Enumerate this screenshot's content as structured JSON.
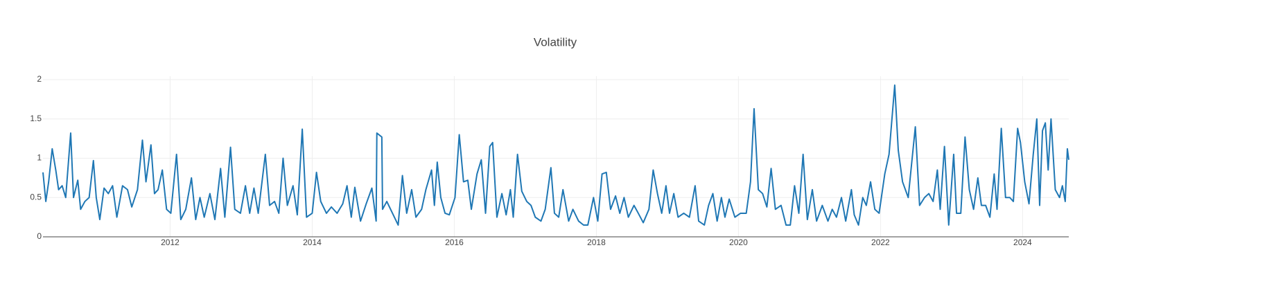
{
  "chart_data": {
    "type": "line",
    "title": "Volatility",
    "x": [
      2010.21,
      2010.25,
      2010.29,
      2010.34,
      2010.39,
      2010.43,
      2010.48,
      2010.53,
      2010.6,
      2010.64,
      2010.7,
      2010.74,
      2010.8,
      2010.86,
      2010.92,
      2010.96,
      2011.01,
      2011.07,
      2011.13,
      2011.19,
      2011.25,
      2011.33,
      2011.4,
      2011.46,
      2011.54,
      2011.61,
      2011.66,
      2011.73,
      2011.78,
      2011.83,
      2011.89,
      2011.95,
      2012.01,
      2012.09,
      2012.15,
      2012.22,
      2012.3,
      2012.36,
      2012.42,
      2012.48,
      2012.56,
      2012.63,
      2012.71,
      2012.77,
      2012.85,
      2012.91,
      2012.99,
      2013.06,
      2013.12,
      2013.18,
      2013.24,
      2013.34,
      2013.4,
      2013.47,
      2013.53,
      2013.59,
      2013.65,
      2013.73,
      2013.79,
      2013.86,
      2013.92,
      2014.0,
      2014.06,
      2014.12,
      2014.2,
      2014.27,
      2014.35,
      2014.43,
      2014.49,
      2014.55,
      2014.6,
      2014.68,
      2014.76,
      2014.84,
      2014.9,
      2014.91,
      2014.98,
      2014.99,
      2015.05,
      2015.13,
      2015.21,
      2015.27,
      2015.33,
      2015.4,
      2015.46,
      2015.54,
      2015.6,
      2015.68,
      2015.72,
      2015.76,
      2015.81,
      2015.87,
      2015.93,
      2016.01,
      2016.07,
      2016.13,
      2016.19,
      2016.24,
      2016.32,
      2016.38,
      2016.44,
      2016.5,
      2016.54,
      2016.6,
      2016.67,
      2016.73,
      2016.79,
      2016.83,
      2016.89,
      2016.95,
      2017.02,
      2017.08,
      2017.14,
      2017.22,
      2017.28,
      2017.36,
      2017.41,
      2017.47,
      2017.53,
      2017.61,
      2017.67,
      2017.75,
      2017.82,
      2017.88,
      2017.96,
      2018.02,
      2018.08,
      2018.14,
      2018.2,
      2018.27,
      2018.33,
      2018.39,
      2018.45,
      2018.53,
      2018.59,
      2018.66,
      2018.74,
      2018.8,
      2018.86,
      2018.92,
      2018.98,
      2019.03,
      2019.09,
      2019.15,
      2019.23,
      2019.31,
      2019.39,
      2019.44,
      2019.52,
      2019.58,
      2019.64,
      2019.7,
      2019.76,
      2019.81,
      2019.87,
      2019.95,
      2020.03,
      2020.11,
      2020.17,
      2020.22,
      2020.28,
      2020.34,
      2020.4,
      2020.46,
      2020.52,
      2020.6,
      2020.67,
      2020.73,
      2020.79,
      2020.85,
      2020.91,
      2020.97,
      2021.04,
      2021.1,
      2021.18,
      2021.26,
      2021.32,
      2021.38,
      2021.45,
      2021.51,
      2021.59,
      2021.63,
      2021.69,
      2021.75,
      2021.8,
      2021.86,
      2021.92,
      2021.98,
      2022.06,
      2022.12,
      2022.2,
      2022.25,
      2022.31,
      2022.39,
      2022.49,
      2022.55,
      2022.62,
      2022.68,
      2022.74,
      2022.8,
      2022.84,
      2022.9,
      2022.96,
      2023.03,
      2023.07,
      2023.13,
      2023.19,
      2023.25,
      2023.31,
      2023.37,
      2023.42,
      2023.48,
      2023.54,
      2023.6,
      2023.64,
      2023.7,
      2023.76,
      2023.82,
      2023.87,
      2023.93,
      2023.97,
      2024.03,
      2024.09,
      2024.15,
      2024.2,
      2024.24,
      2024.28,
      2024.32,
      2024.36,
      2024.4,
      2024.46,
      2024.52,
      2024.56,
      2024.6,
      2024.63,
      2024.65
    ],
    "series": [
      {
        "color": "#1f77b4",
        "values": [
          0.82,
          0.45,
          0.7,
          1.12,
          0.85,
          0.6,
          0.65,
          0.5,
          1.32,
          0.5,
          0.72,
          0.35,
          0.45,
          0.5,
          0.97,
          0.5,
          0.22,
          0.62,
          0.55,
          0.65,
          0.25,
          0.65,
          0.6,
          0.38,
          0.6,
          1.23,
          0.7,
          1.17,
          0.55,
          0.6,
          0.85,
          0.35,
          0.3,
          1.05,
          0.22,
          0.35,
          0.75,
          0.22,
          0.5,
          0.25,
          0.55,
          0.22,
          0.87,
          0.25,
          1.14,
          0.35,
          0.3,
          0.65,
          0.3,
          0.62,
          0.3,
          1.05,
          0.4,
          0.45,
          0.3,
          1.0,
          0.4,
          0.65,
          0.28,
          1.37,
          0.25,
          0.3,
          0.82,
          0.45,
          0.3,
          0.38,
          0.3,
          0.42,
          0.65,
          0.25,
          0.63,
          0.2,
          0.42,
          0.62,
          0.2,
          1.32,
          1.27,
          0.35,
          0.45,
          0.3,
          0.15,
          0.78,
          0.3,
          0.6,
          0.25,
          0.35,
          0.6,
          0.85,
          0.4,
          0.95,
          0.5,
          0.3,
          0.28,
          0.5,
          1.3,
          0.7,
          0.72,
          0.35,
          0.8,
          0.98,
          0.3,
          1.15,
          1.2,
          0.25,
          0.55,
          0.28,
          0.6,
          0.25,
          1.05,
          0.58,
          0.45,
          0.4,
          0.25,
          0.2,
          0.35,
          0.88,
          0.3,
          0.25,
          0.6,
          0.2,
          0.35,
          0.2,
          0.15,
          0.15,
          0.5,
          0.2,
          0.8,
          0.82,
          0.35,
          0.52,
          0.3,
          0.5,
          0.25,
          0.4,
          0.3,
          0.18,
          0.35,
          0.85,
          0.55,
          0.3,
          0.65,
          0.3,
          0.55,
          0.25,
          0.3,
          0.25,
          0.65,
          0.2,
          0.15,
          0.4,
          0.55,
          0.2,
          0.5,
          0.25,
          0.48,
          0.25,
          0.3,
          0.3,
          0.7,
          1.63,
          0.6,
          0.55,
          0.38,
          0.87,
          0.35,
          0.4,
          0.15,
          0.15,
          0.65,
          0.3,
          1.05,
          0.22,
          0.6,
          0.2,
          0.4,
          0.2,
          0.35,
          0.25,
          0.5,
          0.2,
          0.6,
          0.28,
          0.15,
          0.5,
          0.4,
          0.7,
          0.35,
          0.3,
          0.8,
          1.05,
          1.93,
          1.1,
          0.7,
          0.5,
          1.4,
          0.4,
          0.5,
          0.55,
          0.45,
          0.85,
          0.35,
          1.15,
          0.15,
          1.05,
          0.3,
          0.3,
          1.27,
          0.6,
          0.35,
          0.75,
          0.4,
          0.4,
          0.25,
          0.8,
          0.35,
          1.38,
          0.5,
          0.5,
          0.45,
          1.38,
          1.2,
          0.7,
          0.42,
          1.05,
          1.5,
          0.4,
          1.35,
          1.45,
          0.85,
          1.5,
          0.6,
          0.5,
          0.65,
          0.45,
          1.12,
          0.98
        ]
      }
    ],
    "xlim": [
      2010.21,
      2024.65
    ],
    "xticks": [
      2012,
      2014,
      2016,
      2018,
      2020,
      2022,
      2024
    ],
    "ylim": [
      0,
      2
    ],
    "yticks": [
      0,
      0.5,
      1,
      1.5,
      2
    ],
    "grid": true
  }
}
